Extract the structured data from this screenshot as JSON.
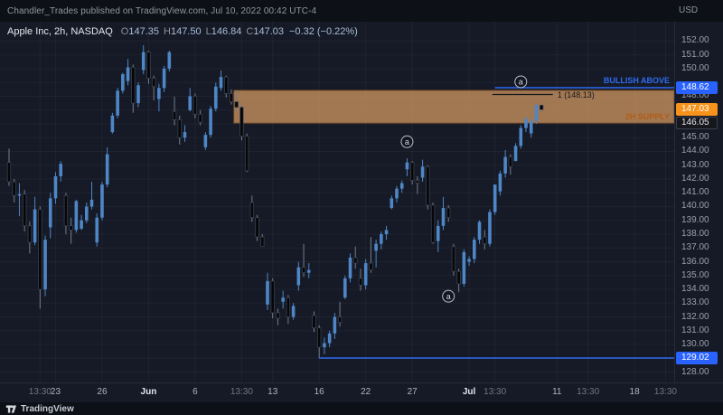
{
  "attribution": "Chandler_Trades published on TradingView.com, Jul 10, 2022 00:42 UTC-4",
  "symbol_line": {
    "title": "Apple Inc, 2h, NASDAQ",
    "o_label": "O",
    "o": "147.35",
    "h_label": "H",
    "h": "147.50",
    "l_label": "L",
    "l": "146.84",
    "c_label": "C",
    "c": "147.03",
    "change": "−0.32 (−0.22%)"
  },
  "price_axis": {
    "currency": "USD",
    "labels": [
      152,
      151,
      150,
      148,
      145,
      144,
      143,
      142,
      141,
      140,
      139,
      138,
      137,
      136,
      135,
      134,
      133,
      132,
      131,
      130,
      128
    ],
    "tags": [
      {
        "price": 148.62,
        "text": "148.62",
        "bg": "#2962ff",
        "fg": "#ffffff",
        "name": "bullish-level-tag"
      },
      {
        "price": 147.03,
        "text": "147.03",
        "bg": "#f7931a",
        "fg": "#ffffff",
        "name": "last-price-tag"
      },
      {
        "price": 146.05,
        "text": "146.05",
        "bg": "#15171d",
        "fg": "#e6e8ec",
        "border": "#3a3f4d",
        "name": "zone-low-tag"
      },
      {
        "price": 129.02,
        "text": "129.02",
        "bg": "#2962ff",
        "fg": "#ffffff",
        "name": "support-level-tag"
      }
    ]
  },
  "time_axis": {
    "labels": [
      {
        "bar": 6,
        "text": "13:30",
        "type": "time"
      },
      {
        "bar": 9,
        "text": "23",
        "type": "day"
      },
      {
        "bar": 18,
        "text": "26",
        "type": "day"
      },
      {
        "bar": 27,
        "text": "Jun",
        "type": "month"
      },
      {
        "bar": 36,
        "text": "6",
        "type": "day"
      },
      {
        "bar": 45,
        "text": "13:30",
        "type": "time"
      },
      {
        "bar": 51,
        "text": "13",
        "type": "day"
      },
      {
        "bar": 60,
        "text": "16",
        "type": "day"
      },
      {
        "bar": 69,
        "text": "22",
        "type": "day"
      },
      {
        "bar": 78,
        "text": "27",
        "type": "day"
      },
      {
        "bar": 89,
        "text": "Jul",
        "type": "month"
      },
      {
        "bar": 94,
        "text": "13:30",
        "type": "time"
      },
      {
        "bar": 106,
        "text": "11",
        "type": "day"
      },
      {
        "bar": 112,
        "text": "13:30",
        "type": "time"
      },
      {
        "bar": 121,
        "text": "18",
        "type": "day"
      },
      {
        "bar": 127,
        "text": "13:30",
        "type": "time"
      }
    ]
  },
  "footer": {
    "brand": "TradingView"
  },
  "chart_data": {
    "type": "candlestick",
    "title": "Apple Inc, 2h, NASDAQ",
    "interval": "2h",
    "ylim": [
      128,
      152
    ],
    "ohlc_display": {
      "open": 147.35,
      "high": 147.5,
      "low": 146.84,
      "close": 147.03,
      "change_pct": -0.22
    },
    "colors": {
      "up": "#4e86c6",
      "down": "#05070a",
      "down_border": "#3f4654",
      "down_wick": "#767c8a",
      "grid": "rgba(255,255,255,0.045)"
    },
    "candles": [
      [
        143.2,
        144.2,
        141.5,
        141.8
      ],
      [
        141.8,
        142,
        140.3,
        140.8
      ],
      [
        140.8,
        141.7,
        139.3,
        140.9
      ],
      [
        140.9,
        141.2,
        138.2,
        138.6
      ],
      [
        138.6,
        138.9,
        136.6,
        137.4
      ],
      [
        137.4,
        140.7,
        137.2,
        139.8
      ],
      [
        139.8,
        140,
        132.6,
        134
      ],
      [
        134,
        137.9,
        133.5,
        137.6
      ],
      [
        138.5,
        141,
        137.7,
        140.6
      ],
      [
        140.6,
        142.5,
        140.2,
        142.2
      ],
      [
        142.2,
        143.3,
        141.8,
        143.1
      ],
      [
        140.8,
        141,
        138,
        138.6
      ],
      [
        138.6,
        139.2,
        137.3,
        138.3
      ],
      [
        138.3,
        140.5,
        138.1,
        140.4
      ],
      [
        138.4,
        139.4,
        138.3,
        139
      ],
      [
        139,
        140.3,
        138.8,
        140
      ],
      [
        140,
        141.8,
        139.8,
        140.5
      ],
      [
        137.4,
        139.5,
        137.1,
        139.2
      ],
      [
        139.2,
        141.8,
        139,
        141.6
      ],
      [
        141.6,
        144.3,
        141.4,
        143.8
      ],
      [
        145.4,
        146.8,
        145.3,
        146.6
      ],
      [
        146.6,
        148.6,
        146.4,
        148.4
      ],
      [
        148.4,
        149.7,
        148.2,
        149.6
      ],
      [
        149.1,
        150.7,
        148.8,
        150.1
      ],
      [
        150.1,
        150.3,
        146.8,
        147.5
      ],
      [
        147.5,
        149,
        147.2,
        148.8
      ],
      [
        149.9,
        151.7,
        149.6,
        151.2
      ],
      [
        151.2,
        151.3,
        148.9,
        149.3
      ],
      [
        149.3,
        149.5,
        147.7,
        148.7
      ],
      [
        147.8,
        148.9,
        146.9,
        148.6
      ],
      [
        148.6,
        150.2,
        148.3,
        150
      ],
      [
        150,
        151.3,
        149.8,
        151.2
      ],
      [
        146.9,
        147.97,
        145.9,
        146.3
      ],
      [
        146.3,
        146.6,
        144.5,
        145
      ],
      [
        145,
        145.9,
        144.7,
        145.4
      ],
      [
        147,
        148.6,
        146.9,
        148
      ],
      [
        148,
        148.2,
        146.4,
        146.7
      ],
      [
        146.7,
        147,
        145.9,
        146.1
      ],
      [
        144.3,
        145.4,
        144.1,
        145.2
      ],
      [
        145.2,
        147.3,
        145,
        147.1
      ],
      [
        147.1,
        149,
        146.9,
        148.7
      ],
      [
        148.6,
        149.87,
        148.4,
        149.4
      ],
      [
        149.4,
        149.5,
        147.9,
        148.2
      ],
      [
        148.2,
        148.5,
        147.4,
        147.6
      ],
      [
        147.6,
        148.43,
        146.9,
        147.2
      ],
      [
        147.2,
        147.4,
        144.8,
        145.1
      ],
      [
        145.1,
        145.3,
        142.5,
        142.6
      ],
      [
        140.3,
        140.8,
        138.9,
        139.2
      ],
      [
        139.2,
        139.4,
        137.5,
        137.8
      ],
      [
        137.8,
        138,
        137.1,
        137.1
      ],
      [
        132.9,
        135.2,
        132.5,
        134.6
      ],
      [
        134.6,
        134.8,
        131.9,
        132.3
      ],
      [
        132.3,
        132.6,
        131.4,
        131.9
      ],
      [
        133.1,
        133.9,
        132.6,
        133.4
      ],
      [
        133.4,
        133.6,
        131.5,
        132
      ],
      [
        132,
        133,
        131.8,
        132.8
      ],
      [
        134.3,
        136,
        133.9,
        135.6
      ],
      [
        135.6,
        137.3,
        134.9,
        135.2
      ],
      [
        135.2,
        135.9,
        134.8,
        135.4
      ],
      [
        132.1,
        132.4,
        130.9,
        131.2
      ],
      [
        131.2,
        131.4,
        129,
        129.8
      ],
      [
        129.8,
        130.5,
        129.3,
        130.1
      ],
      [
        130.1,
        131,
        129.8,
        130.8
      ],
      [
        130.8,
        132.3,
        130.4,
        132
      ],
      [
        132,
        133.1,
        131.3,
        131.6
      ],
      [
        133.4,
        135,
        133.3,
        134.8
      ],
      [
        134.8,
        136.6,
        134.5,
        136.3
      ],
      [
        136.3,
        137.1,
        135.5,
        135.9
      ],
      [
        134.8,
        135.5,
        133.9,
        134.3
      ],
      [
        134.3,
        136.2,
        134,
        135.9
      ],
      [
        135.9,
        137.8,
        135.2,
        135.4
      ],
      [
        136.8,
        137.6,
        135.6,
        137.3
      ],
      [
        137.3,
        138.2,
        136.9,
        138
      ],
      [
        138,
        138.6,
        137.6,
        138.3
      ],
      [
        139.9,
        140.8,
        139.8,
        140.6
      ],
      [
        140.6,
        141.5,
        140.3,
        141.3
      ],
      [
        141.3,
        141.9,
        141,
        141.7
      ],
      [
        142.7,
        143.5,
        142.2,
        143.2
      ],
      [
        143.2,
        143.3,
        141.6,
        141.9
      ],
      [
        141.9,
        142.2,
        140.9,
        141.7
      ],
      [
        142.1,
        143.4,
        141.8,
        142.9
      ],
      [
        142.9,
        143,
        139.8,
        140.1
      ],
      [
        140.1,
        140.3,
        137.3,
        137.4
      ],
      [
        137.5,
        139,
        136.7,
        138.6
      ],
      [
        138.6,
        140.7,
        138.3,
        139.9
      ],
      [
        139.9,
        140.1,
        138.9,
        139.2
      ],
      [
        137.1,
        137.3,
        135,
        135.3
      ],
      [
        135.3,
        135.5,
        133.8,
        134.4
      ],
      [
        134.4,
        136.9,
        134.2,
        136.7
      ],
      [
        136,
        136.4,
        135.7,
        136.2
      ],
      [
        136.2,
        137.8,
        135.9,
        137.6
      ],
      [
        137.6,
        139,
        137.3,
        138.9
      ],
      [
        137.8,
        138.3,
        136.9,
        137.3
      ],
      [
        137.3,
        139.8,
        137.1,
        139.6
      ],
      [
        139.6,
        141.6,
        139.4,
        141.6
      ],
      [
        141.1,
        142.6,
        140.8,
        142.4
      ],
      [
        142.4,
        144.1,
        142.1,
        143.6
      ],
      [
        143.6,
        143.8,
        142.3,
        142.9
      ],
      [
        143.3,
        144.6,
        143.3,
        144.4
      ],
      [
        144.4,
        145.9,
        144.2,
        145.7
      ],
      [
        145.7,
        146.55,
        145.4,
        146.35
      ],
      [
        145.3,
        146.4,
        145,
        146.2
      ],
      [
        146.2,
        147.45,
        146,
        147.35
      ],
      [
        147.35,
        147.5,
        146.84,
        147.03
      ]
    ],
    "annotations": {
      "supply_zone": {
        "start_bar": 44,
        "top": 148.43,
        "bottom": 146.05,
        "label": "2H SUPPLY",
        "fill": "rgba(194,142,93,0.82)",
        "border": "rgba(110,70,35,0.9)",
        "label_color": "#b35c16"
      },
      "bullish_line": {
        "price": 148.62,
        "start_bar": 94,
        "label": "BULLISH ABOVE",
        "color": "#2e6bf0"
      },
      "support_line": {
        "price": 129.02,
        "start_bar": 60,
        "color": "#2e6bf0"
      },
      "level_line": {
        "price": 148.13,
        "start_bar": 93.5,
        "end_bar": 105.2,
        "label": "1 (148.13)",
        "color": "#14171d"
      },
      "markers": [
        {
          "bar": 99,
          "price": 149.05,
          "glyph": "a"
        },
        {
          "bar": 77,
          "price": 144.7,
          "glyph": "a"
        },
        {
          "bar": 85,
          "price": 133.5,
          "glyph": "a"
        }
      ]
    }
  }
}
